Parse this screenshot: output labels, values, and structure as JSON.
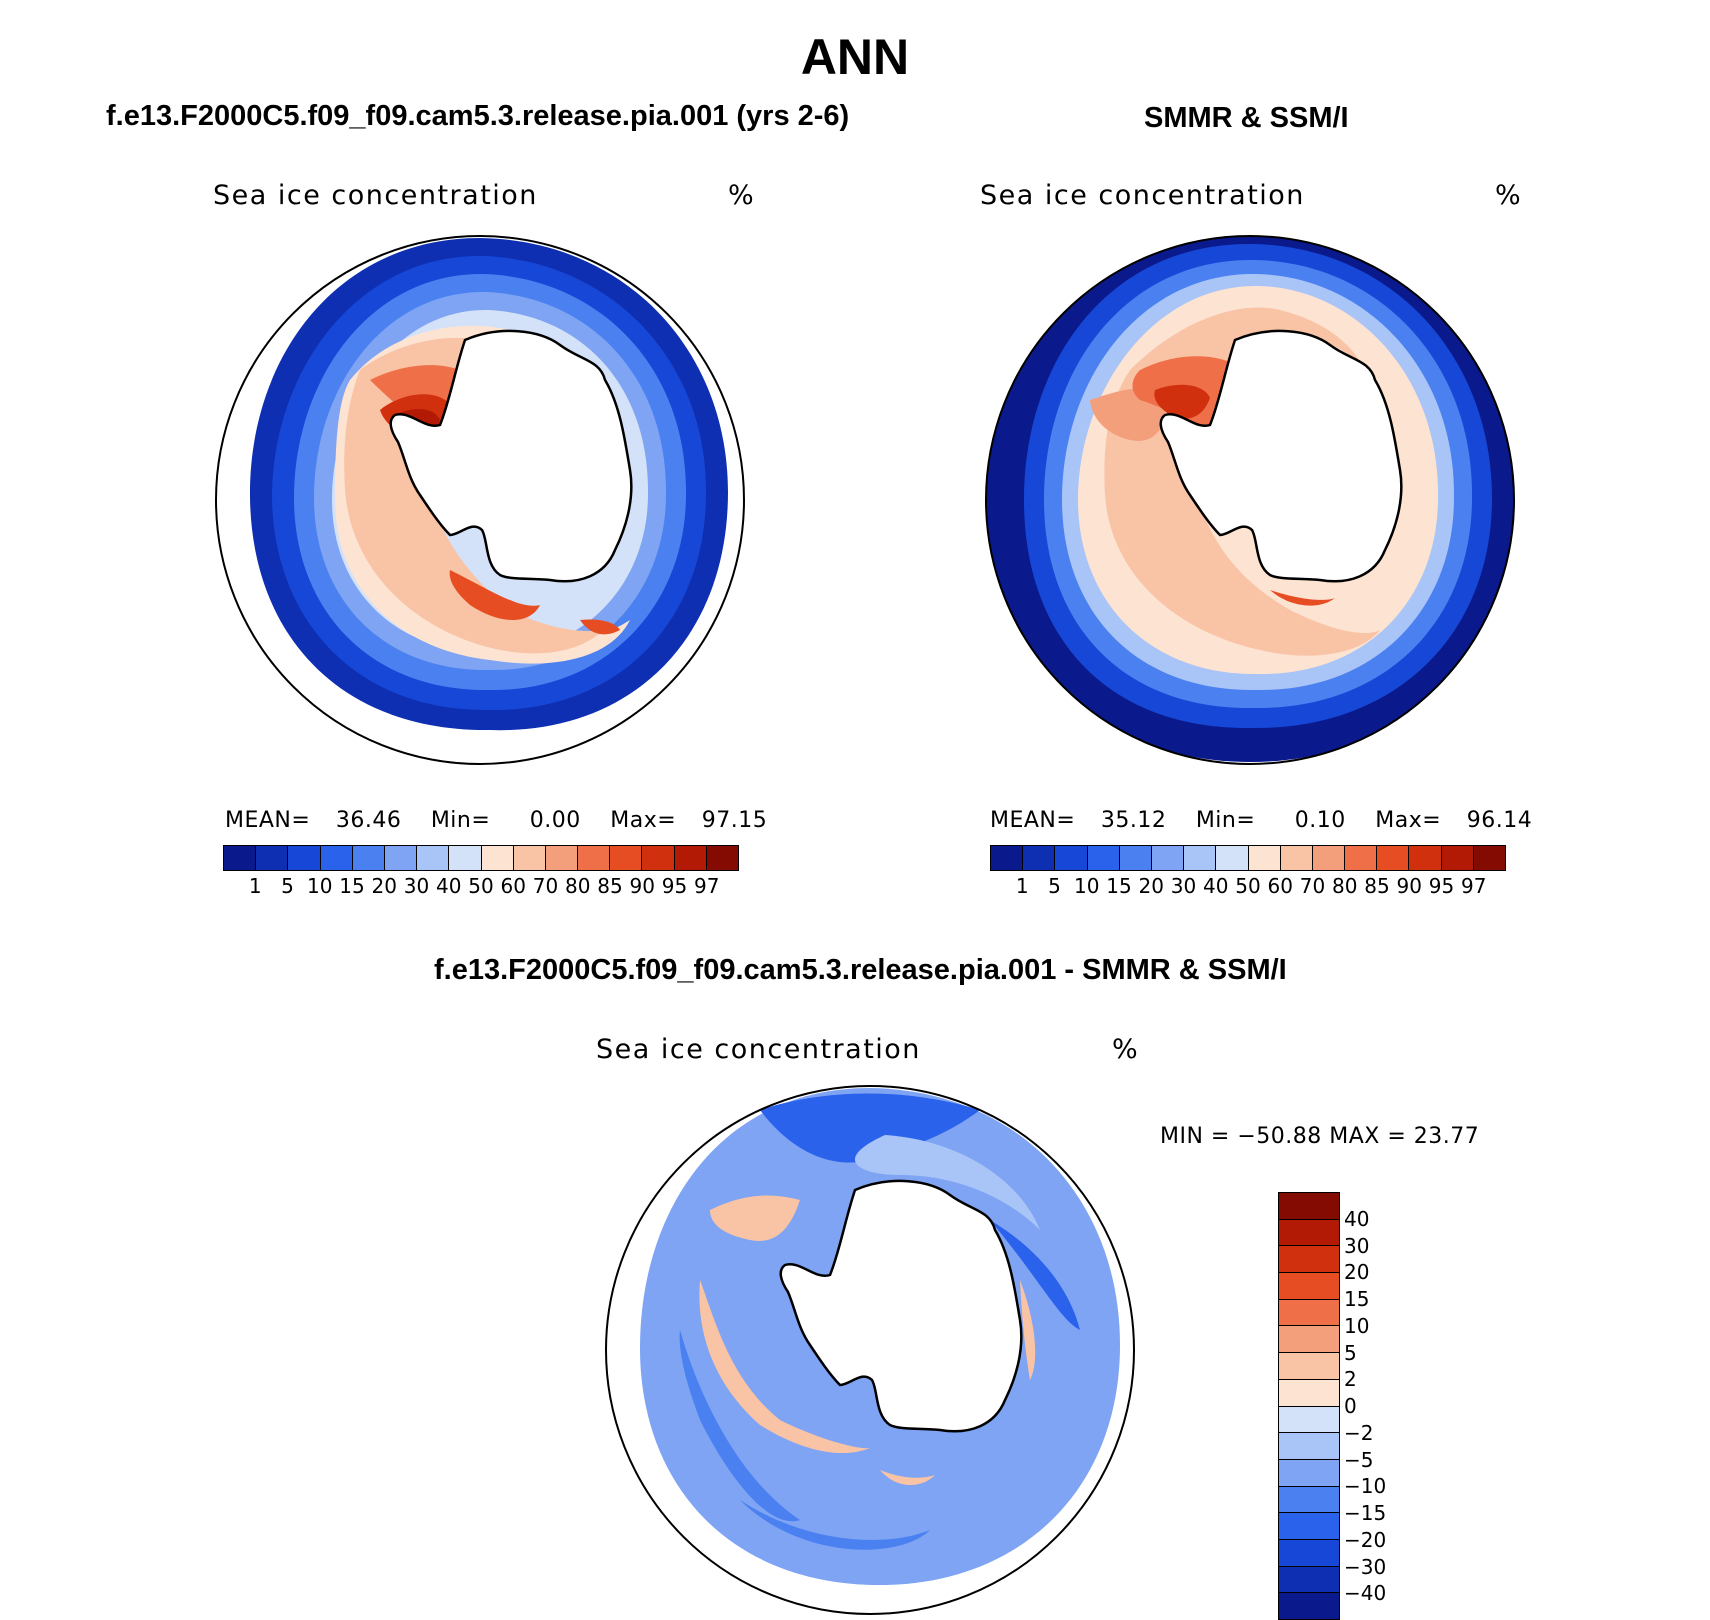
{
  "figure": {
    "season": "ANN",
    "model_title": "f.e13.F2000C5.f09_f09.cam5.3.release.pia.001 (yrs 2-6)",
    "obs_title": "SMMR & SSM/I",
    "diff_title": "f.e13.F2000C5.f09_f09.cam5.3.release.pia.001 - SMMR & SSM/I"
  },
  "panels": {
    "model": {
      "variable": "Sea ice concentration",
      "units": "%",
      "mean_label": "MEAN=",
      "mean_value": "36.46",
      "min_label": "Min=",
      "min_value": "0.00",
      "max_label": "Max=",
      "max_value": "97.15"
    },
    "obs": {
      "variable": "Sea ice concentration",
      "units": "%",
      "mean_label": "MEAN=",
      "mean_value": "35.12",
      "min_label": "Min=",
      "min_value": "0.10",
      "max_label": "Max=",
      "max_value": "96.14"
    },
    "diff": {
      "variable": "Sea ice concentration",
      "units": "%",
      "minmax_text": "MIN = −50.88 MAX =   23.77"
    }
  },
  "abs_colorbar": {
    "levels": [
      "1",
      "5",
      "10",
      "15",
      "20",
      "30",
      "40",
      "50",
      "60",
      "70",
      "80",
      "85",
      "90",
      "95",
      "97"
    ],
    "colors": [
      "#0a1a8c",
      "#0f2fb2",
      "#1747d6",
      "#2b62ec",
      "#4a80f0",
      "#7ea4f3",
      "#a9c4f6",
      "#d3e2f8",
      "#fde3d2",
      "#f9c3a6",
      "#f49f7c",
      "#ef7048",
      "#e74d22",
      "#d1300f",
      "#b21a06",
      "#840b02"
    ]
  },
  "diff_colorbar": {
    "levels": [
      "40",
      "30",
      "20",
      "15",
      "10",
      "5",
      "2",
      "0",
      "−2",
      "−5",
      "−10",
      "−15",
      "−20",
      "−30",
      "−40"
    ],
    "colors": [
      "#840b02",
      "#b21a06",
      "#d1300f",
      "#e74d22",
      "#ef7048",
      "#f49f7c",
      "#f9c3a6",
      "#fde3d2",
      "#d3e2f8",
      "#a9c4f6",
      "#7ea4f3",
      "#4a80f0",
      "#2b62ec",
      "#1747d6",
      "#0f2fb2",
      "#0a1a8c"
    ]
  }
}
